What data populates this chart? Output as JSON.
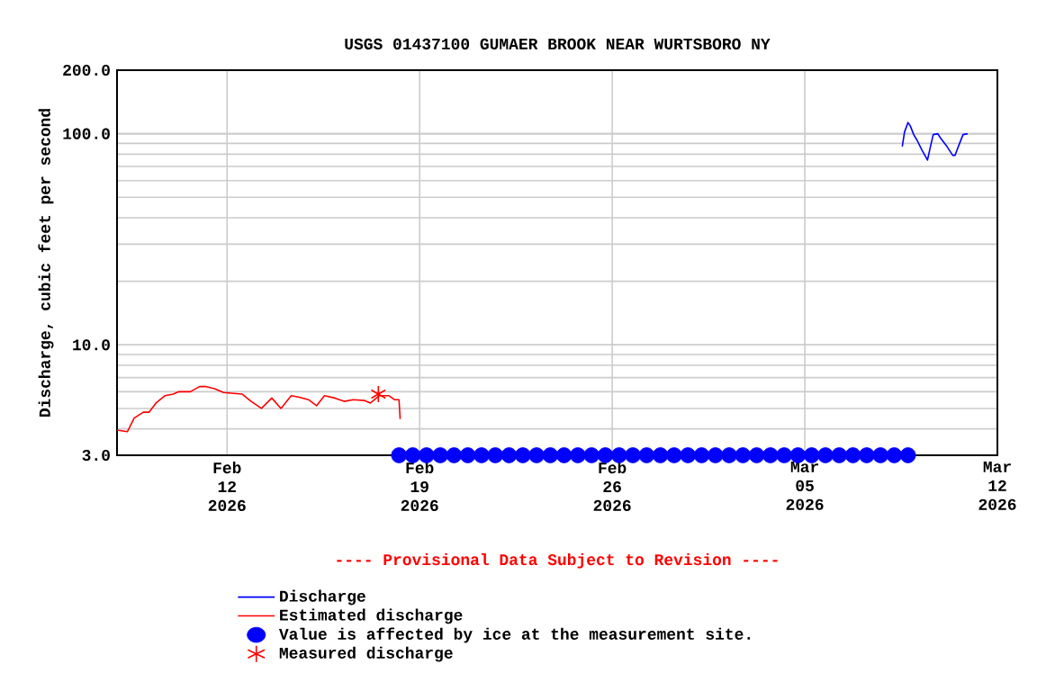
{
  "chart_data": {
    "type": "line",
    "title": "USGS 01437100 GUMAER BROOK NEAR WURTSBORO NY",
    "ylabel": "Discharge, cubic feet per second",
    "legend_title": "---- Provisional Data Subject to Revision ----",
    "log": true,
    "grid": true,
    "legend": "bottom",
    "xlim": [
      "2026-02-08",
      "2026-03-12"
    ],
    "xticks": [
      {
        "value": "2026-02-12",
        "label": "Feb 12 2026"
      },
      {
        "value": "2026-02-19",
        "label": "Feb 19 2026"
      },
      {
        "value": "2026-02-26",
        "label": "Feb 26 2026"
      },
      {
        "value": "2026-03-05",
        "label": "Mar 05 2026"
      },
      {
        "value": "2026-03-12",
        "label": "Mar 12 2026"
      }
    ],
    "ylim": [
      3,
      200
    ],
    "yticks": [
      {
        "value": 3,
        "label": "3.0"
      },
      {
        "value": 10,
        "label": "10.0"
      },
      {
        "value": 100,
        "label": "100.0"
      },
      {
        "value": 200,
        "label": "200.0"
      }
    ],
    "series": [
      {
        "name": "Discharge",
        "color": "#0000ff",
        "marker": "none",
        "x": [
          "2026-03-08T13:00",
          "2026-03-08T15:00",
          "2026-03-08T18:00",
          "2026-03-08T20:00",
          "2026-03-08T23:00",
          "2026-03-09T02:00",
          "2026-03-09T06:00",
          "2026-03-09T11:00",
          "2026-03-09T13:00",
          "2026-03-09T16:00",
          "2026-03-09T20:00",
          "2026-03-09T22:00",
          "2026-03-10T04:00",
          "2026-03-10T09:00",
          "2026-03-10T11:00",
          "2026-03-10T15:00",
          "2026-03-10T18:00",
          "2026-03-10T22:00"
        ],
        "values": [
          87,
          102,
          113,
          109,
          99,
          93,
          84,
          75,
          84,
          99,
          100,
          96,
          87,
          79,
          79,
          90,
          99,
          100
        ]
      },
      {
        "name": "Estimated discharge",
        "color": "#ff0000",
        "marker": "none",
        "x": [
          "2026-02-08T00:00",
          "2026-02-08T09:00",
          "2026-02-08T15:00",
          "2026-02-08T23:00",
          "2026-02-09T04:00",
          "2026-02-09T10:00",
          "2026-02-09T18:00",
          "2026-02-10T01:00",
          "2026-02-10T06:00",
          "2026-02-10T16:00",
          "2026-02-11T00:00",
          "2026-02-11T05:00",
          "2026-02-11T13:00",
          "2026-02-11T21:00",
          "2026-02-12T13:00",
          "2026-02-12T21:00",
          "2026-02-13T06:00",
          "2026-02-13T15:00",
          "2026-02-13T23:00",
          "2026-02-14T08:00",
          "2026-02-14T15:00",
          "2026-02-14T23:00",
          "2026-02-15T06:00",
          "2026-02-15T13:00",
          "2026-02-15T22:00",
          "2026-02-16T06:00",
          "2026-02-16T14:00",
          "2026-02-17T00:00",
          "2026-02-17T05:00",
          "2026-02-17T13:00",
          "2026-02-17T21:00",
          "2026-02-18T02:00",
          "2026-02-18T06:00",
          "2026-02-18T07:00"
        ],
        "values": [
          3.95,
          3.88,
          4.5,
          4.8,
          4.8,
          5.3,
          5.75,
          5.85,
          6.0,
          6.0,
          6.35,
          6.35,
          6.2,
          5.95,
          5.85,
          5.4,
          5.0,
          5.6,
          5.0,
          5.75,
          5.65,
          5.5,
          5.15,
          5.75,
          5.6,
          5.4,
          5.5,
          5.45,
          5.3,
          5.75,
          5.75,
          5.5,
          5.5,
          4.45
        ]
      },
      {
        "name": "Value is affected by ice at the measurement site.",
        "type": "scatter",
        "color": "#0000ff",
        "marker": "circle",
        "x": [
          "2026-02-18T06:00",
          "2026-02-18T18:00",
          "2026-02-19T06:00",
          "2026-02-19T18:00",
          "2026-02-20T06:00",
          "2026-02-20T18:00",
          "2026-02-21T06:00",
          "2026-02-21T18:00",
          "2026-02-22T06:00",
          "2026-02-22T18:00",
          "2026-02-23T06:00",
          "2026-02-23T18:00",
          "2026-02-24T06:00",
          "2026-02-24T18:00",
          "2026-02-25T06:00",
          "2026-02-25T18:00",
          "2026-02-26T06:00",
          "2026-02-26T18:00",
          "2026-02-27T06:00",
          "2026-02-27T18:00",
          "2026-02-28T06:00",
          "2026-02-28T18:00",
          "2026-03-01T06:00",
          "2026-03-01T18:00",
          "2026-03-02T06:00",
          "2026-03-02T18:00",
          "2026-03-03T06:00",
          "2026-03-03T18:00",
          "2026-03-04T06:00",
          "2026-03-04T18:00",
          "2026-03-05T06:00",
          "2026-03-05T18:00",
          "2026-03-06T06:00",
          "2026-03-06T18:00",
          "2026-03-07T06:00",
          "2026-03-07T18:00",
          "2026-03-08T06:00",
          "2026-03-08T18:00"
        ],
        "values": [
          3,
          3,
          3,
          3,
          3,
          3,
          3,
          3,
          3,
          3,
          3,
          3,
          3,
          3,
          3,
          3,
          3,
          3,
          3,
          3,
          3,
          3,
          3,
          3,
          3,
          3,
          3,
          3,
          3,
          3,
          3,
          3,
          3,
          3,
          3,
          3,
          3,
          3
        ]
      },
      {
        "name": "Measured discharge",
        "type": "scatter",
        "color": "#ff0000",
        "marker": "cross",
        "x": [
          "2026-02-17T12:00"
        ],
        "values": [
          5.85
        ]
      }
    ]
  }
}
